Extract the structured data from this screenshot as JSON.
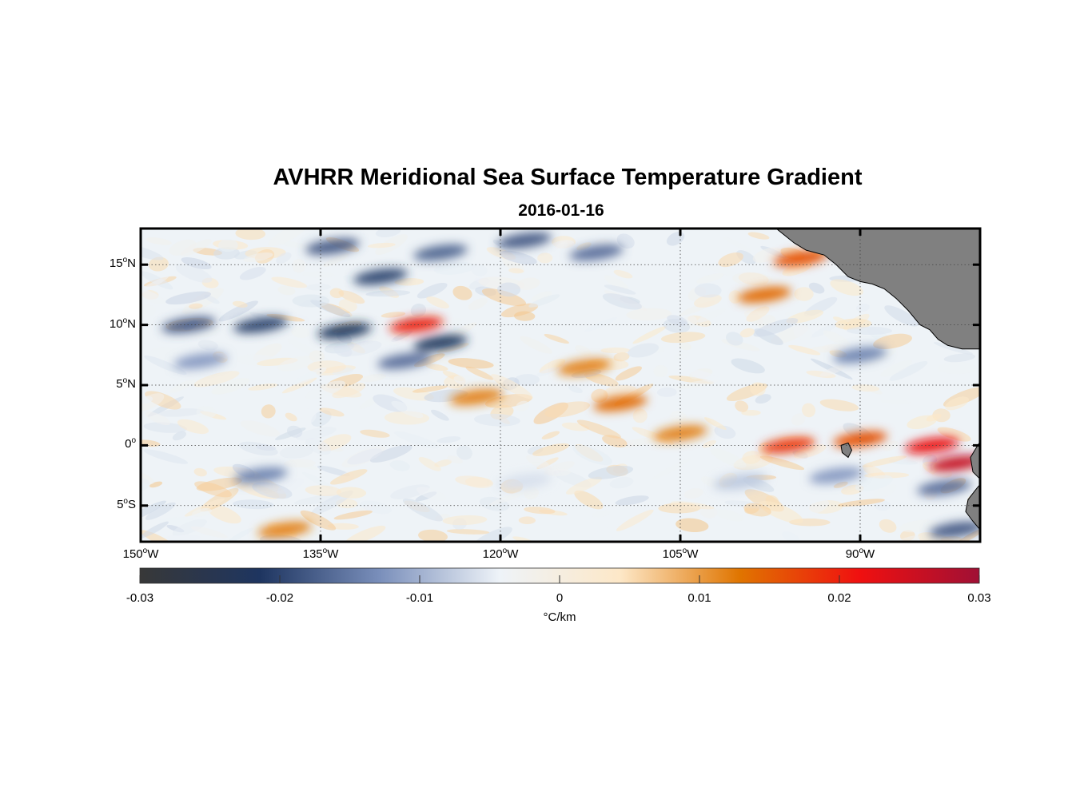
{
  "figure": {
    "title": "AVHRR Meridional Sea Surface Temperature Gradient",
    "date": "2016-01-16"
  },
  "map": {
    "lon_range": [
      -150,
      -80
    ],
    "lat_range": [
      -8,
      18
    ],
    "lat_ticks": [
      {
        "value": 15,
        "label": "15",
        "hemi": "N"
      },
      {
        "value": 10,
        "label": "10",
        "hemi": "N"
      },
      {
        "value": 5,
        "label": "5",
        "hemi": "N"
      },
      {
        "value": 0,
        "label": "0",
        "hemi": ""
      },
      {
        "value": -5,
        "label": "5",
        "hemi": "S"
      }
    ],
    "lon_ticks": [
      {
        "value": -150,
        "label": "150",
        "hemi": "W"
      },
      {
        "value": -135,
        "label": "135",
        "hemi": "W"
      },
      {
        "value": -120,
        "label": "120",
        "hemi": "W"
      },
      {
        "value": -105,
        "label": "105",
        "hemi": "W"
      },
      {
        "value": -90,
        "label": "90",
        "hemi": "W"
      }
    ],
    "degree_symbol": "o",
    "grid": true,
    "land_color": "#808080",
    "features": [
      {
        "lon": -134,
        "lat": 16.5,
        "value": -0.018
      },
      {
        "lon": -130,
        "lat": 14,
        "value": -0.02
      },
      {
        "lon": -125,
        "lat": 16,
        "value": -0.017
      },
      {
        "lon": -118,
        "lat": 17,
        "value": -0.018
      },
      {
        "lon": -112,
        "lat": 16,
        "value": -0.016
      },
      {
        "lon": -140,
        "lat": 10,
        "value": -0.02
      },
      {
        "lon": -133,
        "lat": 9.5,
        "value": -0.022
      },
      {
        "lon": -146,
        "lat": 10,
        "value": -0.018
      },
      {
        "lon": -128,
        "lat": 7,
        "value": -0.016
      },
      {
        "lon": -145,
        "lat": 7,
        "value": -0.012
      },
      {
        "lon": -140,
        "lat": -2.5,
        "value": -0.014
      },
      {
        "lon": -127,
        "lat": 10,
        "value": 0.02
      },
      {
        "lon": -125,
        "lat": 8.5,
        "value": -0.022
      },
      {
        "lon": -122,
        "lat": 4,
        "value": 0.012
      },
      {
        "lon": -113,
        "lat": 6.5,
        "value": 0.012
      },
      {
        "lon": -110,
        "lat": 3.5,
        "value": 0.014
      },
      {
        "lon": -105,
        "lat": 1,
        "value": 0.012
      },
      {
        "lon": -96,
        "lat": 0,
        "value": 0.018
      },
      {
        "lon": -90,
        "lat": 0.5,
        "value": 0.016
      },
      {
        "lon": -84,
        "lat": 0,
        "value": 0.022
      },
      {
        "lon": -82,
        "lat": -1.5,
        "value": 0.026
      },
      {
        "lon": -98,
        "lat": 12.5,
        "value": 0.014
      },
      {
        "lon": -95,
        "lat": 15.5,
        "value": 0.016
      },
      {
        "lon": -92,
        "lat": -2.5,
        "value": -0.012
      },
      {
        "lon": -83,
        "lat": -3.5,
        "value": -0.016
      },
      {
        "lon": -82,
        "lat": -7,
        "value": -0.018
      },
      {
        "lon": -90,
        "lat": 7.5,
        "value": -0.014
      },
      {
        "lon": -138,
        "lat": -7,
        "value": 0.012
      },
      {
        "lon": -100,
        "lat": -3,
        "value": -0.008
      },
      {
        "lon": -118,
        "lat": -3,
        "value": -0.006
      }
    ]
  },
  "colorbar": {
    "min": -0.03,
    "max": 0.03,
    "ticks": [
      {
        "value": -0.03,
        "label": "-0.03"
      },
      {
        "value": -0.02,
        "label": "-0.02"
      },
      {
        "value": -0.01,
        "label": "-0.01"
      },
      {
        "value": 0,
        "label": "0"
      },
      {
        "value": 0.01,
        "label": "0.01"
      },
      {
        "value": 0.02,
        "label": "0.02"
      },
      {
        "value": 0.03,
        "label": "0.03"
      }
    ],
    "units": "°C/km",
    "colors": [
      "#383838",
      "#1e3560",
      "#7a8fbb",
      "#eef3f8",
      "#fde8c8",
      "#e07500",
      "#f01010",
      "#a01035"
    ]
  }
}
